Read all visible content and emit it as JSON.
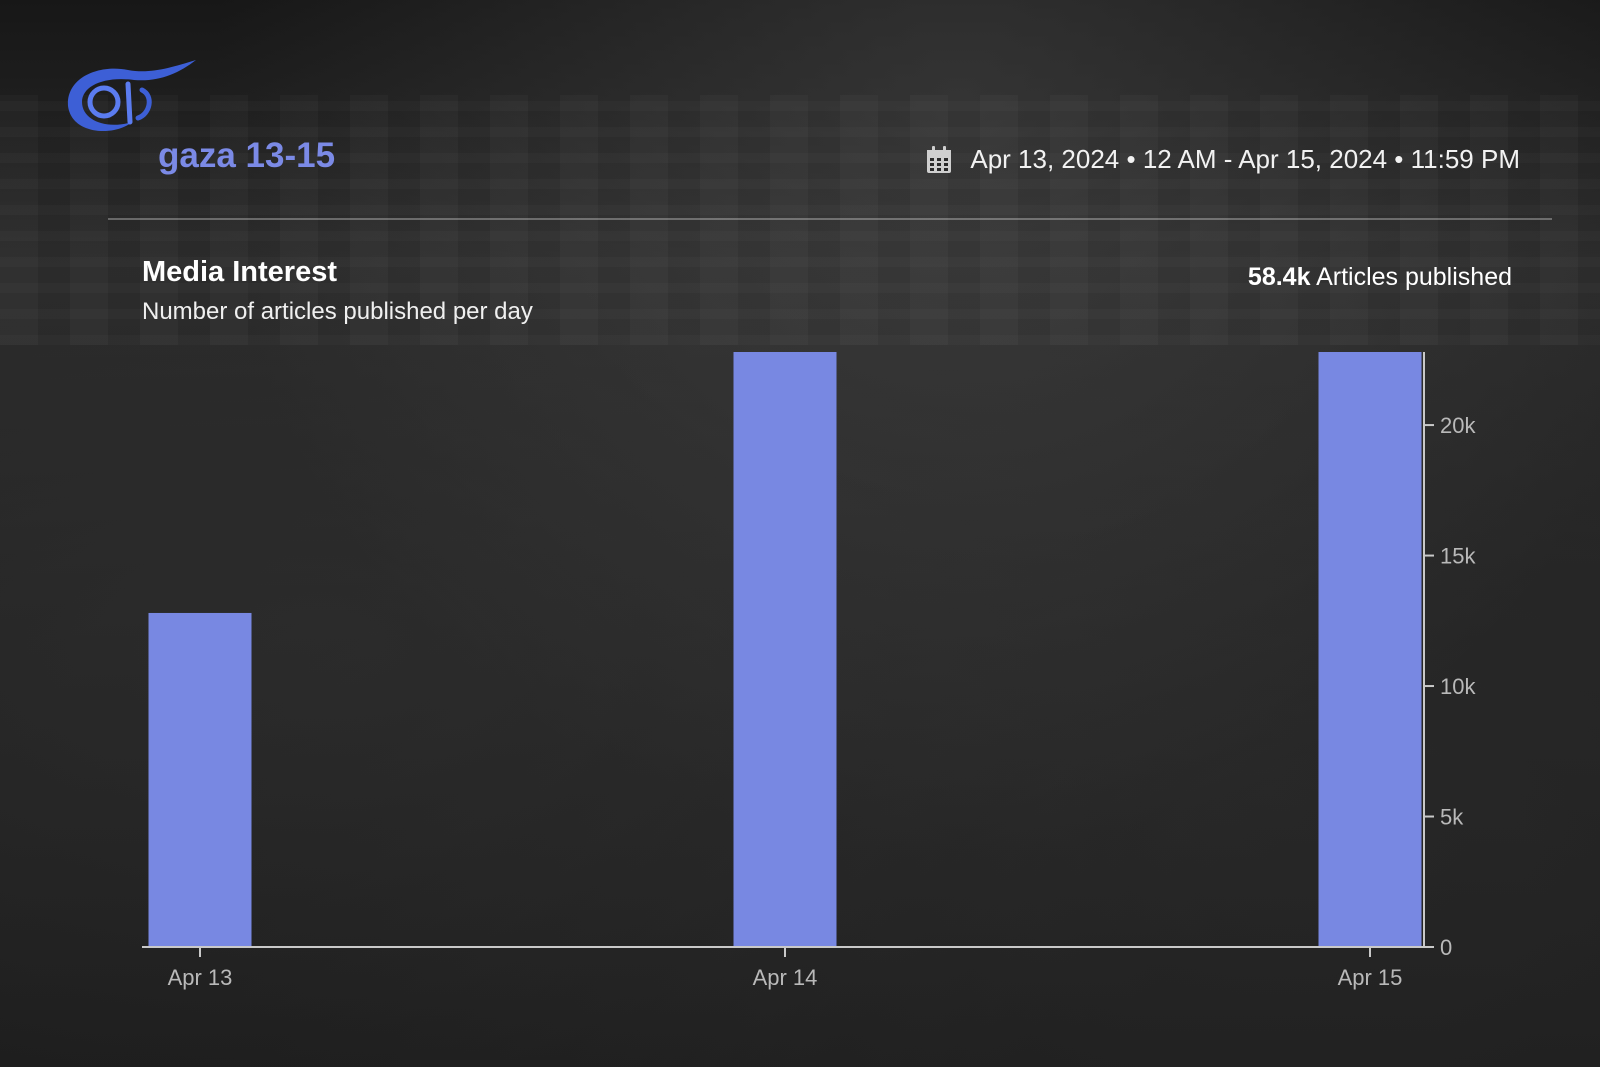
{
  "header": {
    "title": "gaza 13-15",
    "date_range": "Apr 13, 2024 • 12 AM - Apr 15, 2024 • 11:59 PM",
    "calendar_icon": "calendar-icon",
    "logo_icon": "al-mayadeen-logo"
  },
  "section": {
    "title": "Media Interest",
    "subtitle": "Number of articles published per day"
  },
  "kpi": {
    "value": "58.4k",
    "label": "Articles published"
  },
  "colors": {
    "accent": "#7b8ae6",
    "bar": "#7888e2",
    "axis": "#c9c9c9",
    "tick_text": "#b9b9b9"
  },
  "chart_data": {
    "type": "bar",
    "title": "",
    "xlabel": "",
    "ylabel": "",
    "categories": [
      "Apr 13",
      "Apr 14",
      "Apr 15"
    ],
    "values": [
      12800,
      22800,
      22800
    ],
    "ylim": [
      0,
      22800
    ],
    "yticks": [
      0,
      5000,
      10000,
      15000,
      20000
    ],
    "ytick_labels": [
      "0",
      "5k",
      "10k",
      "15k",
      "20k"
    ],
    "y_axis_side": "right",
    "grid": false,
    "legend": "none"
  }
}
